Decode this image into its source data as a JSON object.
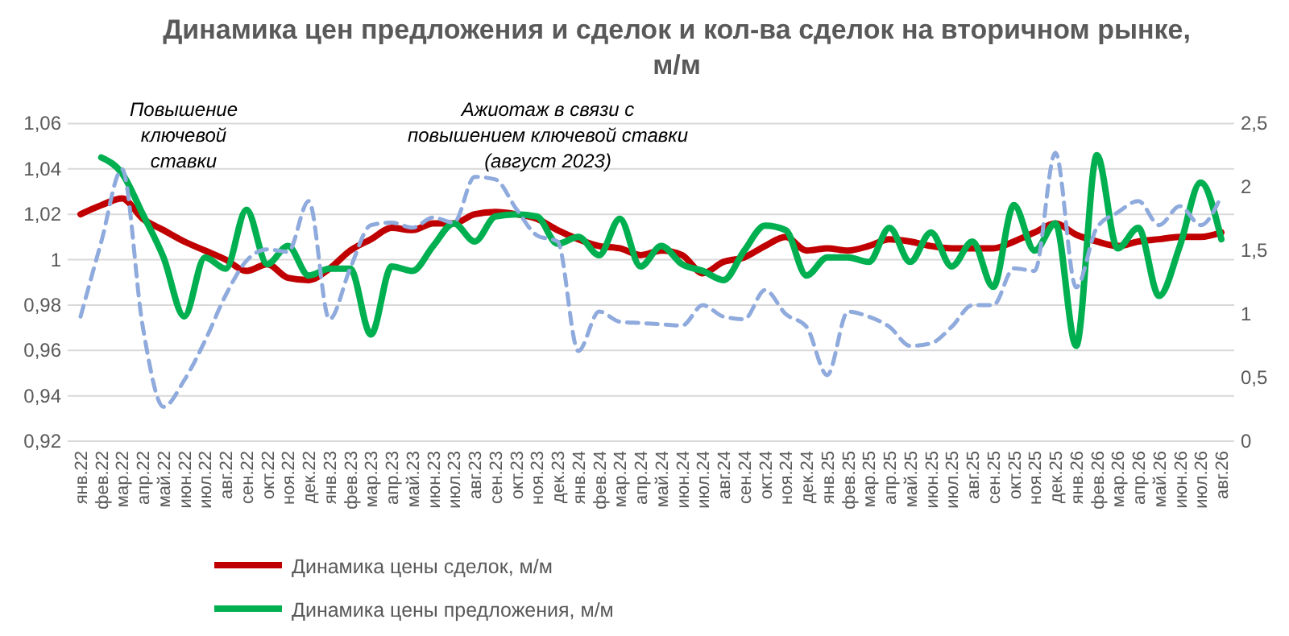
{
  "chart_data": {
    "type": "line",
    "title": "Динамика цен предложения и сделок и кол-ва сделок на вторичном рынке, м/м",
    "categories": [
      "янв.22",
      "фев.22",
      "мар.22",
      "апр.22",
      "май.22",
      "июн.22",
      "июл.22",
      "авг.22",
      "сен.22",
      "окт.22",
      "ноя.22",
      "дек.22",
      "янв.23",
      "фев.23",
      "мар.23",
      "апр.23",
      "май.23",
      "июн.23",
      "июл.23",
      "авг.23",
      "сен.23",
      "окт.23",
      "ноя.23",
      "дек.23",
      "янв.24",
      "фев.24",
      "мар.24",
      "апр.24",
      "май.24",
      "июн.24",
      "июл.24",
      "авг.24",
      "сен.24",
      "окт.24",
      "ноя.24",
      "дек.24",
      "янв.25",
      "фев.25",
      "мар.25",
      "апр.25",
      "май.25",
      "июн.25",
      "июл.25",
      "авг.25",
      "сен.25",
      "окт.25",
      "ноя.25",
      "дек.25",
      "янв.26",
      "фев.26",
      "мар.26",
      "апр.26",
      "май.26",
      "июн.26",
      "июл.26",
      "авг.26"
    ],
    "series": [
      {
        "name": "Динамика цены сделок, м/м",
        "color": "#c00000",
        "values": [
          1.02,
          1.024,
          1.027,
          1.018,
          1.013,
          1.008,
          1.004,
          1.0,
          0.995,
          0.998,
          0.992,
          0.991,
          0.996,
          1.004,
          1.009,
          1.014,
          1.013,
          1.016,
          1.016,
          1.02,
          1.021,
          1.02,
          1.018,
          1.013,
          1.009,
          1.006,
          1.005,
          1.002,
          1.004,
          1.002,
          0.994,
          0.999,
          1.001,
          1.006,
          1.01,
          1.004,
          1.005,
          1.004,
          1.006,
          1.009,
          1.008,
          1.006,
          1.005,
          1.005,
          1.005,
          1.008,
          1.012,
          1.016,
          1.011,
          1.008,
          1.006,
          1.008,
          1.009,
          1.01,
          1.01,
          1.012
        ]
      },
      {
        "name": "Динамика цены предложения, м/м",
        "color": "#00b050",
        "values": [
          null,
          1.045,
          1.038,
          1.02,
          1.001,
          0.975,
          1.001,
          0.996,
          1.022,
          0.998,
          1.006,
          0.993,
          0.996,
          0.996,
          0.967,
          0.997,
          0.995,
          1.006,
          1.016,
          1.008,
          1.019,
          1.02,
          1.019,
          1.007,
          1.01,
          1.002,
          1.018,
          0.997,
          1.006,
          0.998,
          0.995,
          0.991,
          1.004,
          1.015,
          1.013,
          0.993,
          1.001,
          1.001,
          0.999,
          1.014,
          0.999,
          1.012,
          0.997,
          1.008,
          0.988,
          1.024,
          1.004,
          1.016,
          0.962,
          1.046,
          1.005,
          1.014,
          0.984,
          1.006,
          1.034,
          1.009
        ]
      },
      {
        "color": "#8faadc",
        "axis": "y2",
        "line_style": "dashed",
        "values": [
          0.98,
          1.57,
          2.14,
          0.9,
          0.27,
          0.48,
          0.79,
          1.15,
          1.42,
          1.51,
          1.49,
          1.89,
          0.96,
          1.36,
          1.7,
          1.72,
          1.68,
          1.76,
          1.72,
          2.08,
          2.06,
          1.83,
          1.62,
          1.57,
          0.71,
          1.02,
          0.94,
          0.93,
          0.92,
          0.91,
          1.07,
          0.98,
          0.96,
          1.19,
          1.0,
          0.9,
          0.52,
          1.02,
          0.98,
          0.9,
          0.75,
          0.77,
          0.9,
          1.07,
          1.07,
          1.36,
          1.34,
          2.27,
          1.21,
          1.68,
          1.8,
          1.89,
          1.7,
          1.85,
          1.7,
          1.93
        ]
      }
    ],
    "ylim": [
      0.92,
      1.06
    ],
    "yticks": [
      {
        "value": 0.92,
        "label": "0,92"
      },
      {
        "value": 0.94,
        "label": "0,94"
      },
      {
        "value": 0.96,
        "label": "0,96"
      },
      {
        "value": 0.98,
        "label": "0,98"
      },
      1,
      {
        "value": 1.02,
        "label": "1,02"
      },
      {
        "value": 1.04,
        "label": "1,04"
      },
      {
        "value": 1.06,
        "label": "1,06"
      }
    ],
    "y2lim": [
      0,
      2.5
    ],
    "y2ticks": [
      0,
      {
        "value": 0.5,
        "label": "0,5"
      },
      1,
      {
        "value": 1.5,
        "label": "1,5"
      },
      2,
      {
        "value": 2.5,
        "label": "2,5"
      }
    ],
    "annotations": [
      "Повышение ключевой ставки",
      "Ажиотаж в связи с повышением ключевой ставки (август 2023)"
    ],
    "grid": "y",
    "legend": "bottom",
    "marker": "none"
  }
}
